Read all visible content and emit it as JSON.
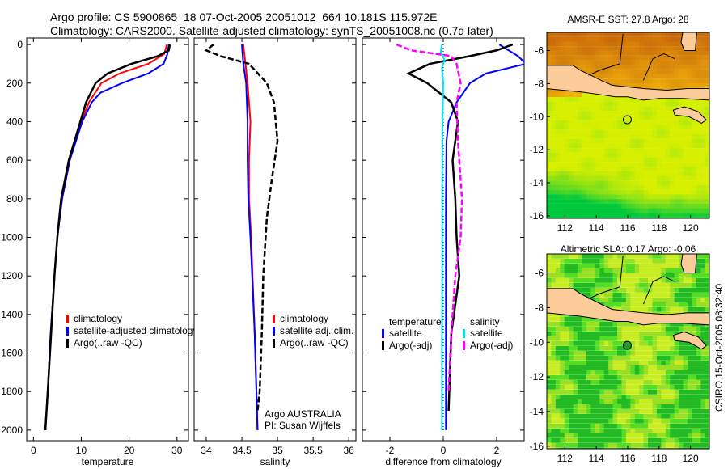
{
  "header": {
    "line1": "Argo profile: CS 5900865_18 07-Oct-2005 20051012_664 10.181S 115.972E",
    "line2": "Climatology: CARS2000. Satellite-adjusted climatology: synTS_20051008.nc (0.7d later)"
  },
  "footer_stamp": "CSIRO 15-Oct-2005 08:32:40",
  "colors": {
    "climatology": "#ff0000",
    "satellite": "#0000ff",
    "argo": "#000000",
    "sal_satellite": "#00e5ee",
    "sal_argo": "#ff00ff"
  },
  "chart_data": [
    {
      "type": "line",
      "xlabel": "temperature",
      "ylabel": "",
      "xlim": [
        -1.4,
        32.4
      ],
      "ylim": [
        2055,
        -34
      ],
      "xticks": [
        "0",
        "10",
        "20",
        "30"
      ],
      "xtick_values": [
        0,
        10,
        20,
        30
      ],
      "yticks": [
        "0",
        "200",
        "400",
        "600",
        "800",
        "1000",
        "1200",
        "1400",
        "1600",
        "1800",
        "2000"
      ],
      "legend": [
        "climatology",
        "satellite-adjusted climatology",
        "Argo(..raw -QC)"
      ],
      "series": [
        {
          "name": "climatology",
          "color": "#ff0000",
          "depth": [
            0,
            50,
            100,
            150,
            200,
            300,
            400,
            600,
            800,
            1000,
            1200,
            1500,
            1800,
            2000
          ],
          "values": [
            27.9,
            27.3,
            24,
            18,
            14.2,
            11.6,
            10,
            7.6,
            6,
            5,
            4.4,
            3.6,
            3,
            2.5
          ]
        },
        {
          "name": "satellite-adjusted climatology",
          "color": "#0000ff",
          "depth": [
            0,
            50,
            100,
            150,
            200,
            250,
            300,
            400,
            600,
            800,
            1000,
            1200,
            1500,
            1800,
            2000
          ],
          "values": [
            28.3,
            28,
            27.2,
            24,
            18.5,
            14,
            12.2,
            10.2,
            7.6,
            6,
            5,
            4.4,
            3.6,
            3,
            2.5
          ]
        },
        {
          "name": "Argo(..raw -QC)",
          "color": "#000000",
          "depth": [
            0,
            30,
            60,
            100,
            150,
            200,
            300,
            400,
            600,
            800,
            1000,
            1200,
            1500,
            1800,
            2000
          ],
          "values": [
            28.5,
            28.3,
            26,
            20.5,
            15.5,
            13,
            11,
            9.8,
            7.4,
            5.8,
            5,
            4.4,
            3.7,
            3,
            2.5
          ]
        }
      ]
    },
    {
      "type": "line",
      "xlabel": "salinity",
      "xlim": [
        33.83,
        36.1
      ],
      "ylim": [
        2055,
        -34
      ],
      "xticks": [
        "34",
        "34.5",
        "35",
        "35.5",
        "36"
      ],
      "xtick_values": [
        34,
        34.5,
        35,
        35.5,
        36
      ],
      "legend": [
        "climatology",
        "satellite adj. clim.",
        "Argo(..raw -QC)"
      ],
      "annotation": [
        "Argo AUSTRALIA",
        "PI: Susan Wijffels"
      ],
      "series": [
        {
          "name": "climatology",
          "color": "#ff0000",
          "depth": [
            0,
            100,
            200,
            300,
            400,
            600,
            800,
            1000,
            1500,
            2000
          ],
          "values": [
            34.52,
            34.55,
            34.58,
            34.6,
            34.62,
            34.6,
            34.6,
            34.63,
            34.68,
            34.72
          ]
        },
        {
          "name": "satellite adj. clim.",
          "color": "#0000ff",
          "depth": [
            0,
            100,
            200,
            300,
            400,
            600,
            800,
            1000,
            1500,
            2000
          ],
          "values": [
            34.5,
            34.52,
            34.56,
            34.57,
            34.58,
            34.58,
            34.59,
            34.62,
            34.68,
            34.72
          ]
        },
        {
          "name": "Argo(..raw -QC)",
          "color": "#000000",
          "depth": [
            0,
            30,
            60,
            100,
            200,
            300,
            500,
            700,
            900,
            1200,
            1500,
            1800,
            1900
          ],
          "values": [
            34.1,
            34.0,
            34.2,
            34.6,
            34.85,
            34.95,
            35.0,
            34.92,
            34.85,
            34.8,
            34.78,
            34.75,
            34.72
          ]
        }
      ]
    },
    {
      "type": "line",
      "xlabel": "difference from climatology",
      "xlim": [
        -3.03,
        3.03
      ],
      "ylim": [
        2055,
        -34
      ],
      "xticks": [
        "-2",
        "0",
        "2"
      ],
      "xtick_values": [
        -2,
        0,
        2
      ],
      "legend_headers": [
        "temperature",
        "salinity"
      ],
      "legend": [
        "satellite",
        "Argo(-adj)",
        "satellite",
        "Argo(-adj)"
      ],
      "series": [
        {
          "name": "temperature satellite",
          "color": "#0000ff",
          "depth": [
            0,
            60,
            100,
            150,
            200,
            300,
            400,
            500,
            800,
            1200,
            1600,
            2000
          ],
          "values": [
            2.1,
            2.8,
            3.1,
            1.6,
            1.0,
            0.5,
            0.2,
            0.12,
            0.1,
            0.1,
            0.1,
            0.1
          ]
        },
        {
          "name": "temperature Argo(-adj)",
          "color": "#000000",
          "depth": [
            0,
            30,
            60,
            100,
            150,
            200,
            300,
            400,
            600,
            800,
            1000,
            1200,
            1500,
            1900
          ],
          "values": [
            2.6,
            2.0,
            1.0,
            -0.5,
            -1.3,
            -0.6,
            0.3,
            0.55,
            0.35,
            0.45,
            0.5,
            0.6,
            0.3,
            0.2
          ]
        },
        {
          "name": "salinity satellite",
          "color": "#00e5ee",
          "depth": [
            0,
            40,
            80,
            120,
            200,
            400,
            800,
            1200,
            1600,
            2000
          ],
          "values": [
            -0.05,
            -0.1,
            0.05,
            -0.05,
            0,
            -0.03,
            -0.04,
            -0.04,
            -0.05,
            -0.05
          ]
        },
        {
          "name": "salinity Argo(-adj)",
          "color": "#ff00ff",
          "depth": [
            0,
            30,
            60,
            100,
            200,
            300,
            500,
            800,
            1000,
            1200,
            1500,
            1800
          ],
          "values": [
            -1.75,
            -1.2,
            0.3,
            0.5,
            0.65,
            0.5,
            0.55,
            0.7,
            0.65,
            0.45,
            0.3,
            0.2
          ]
        }
      ]
    },
    {
      "type": "heatmap",
      "title": "AMSR-E SST: 27.8 Argo: 28",
      "xticks": [
        "112",
        "114",
        "116",
        "118",
        "120"
      ],
      "yticks": [
        "-6",
        "-8",
        "-10",
        "-12",
        "-14",
        "-16"
      ],
      "xlim": [
        110.85,
        121.2
      ],
      "ylim": [
        -16.15,
        -4.9
      ],
      "float_position": [
        115.972,
        -10.181
      ]
    },
    {
      "type": "heatmap",
      "title": "Altimetric SLA: 0.17 Argo: -0.06",
      "xticks": [
        "112",
        "114",
        "116",
        "118",
        "120"
      ],
      "yticks": [
        "-6",
        "-8",
        "-10",
        "-12",
        "-14",
        "-16"
      ],
      "xlim": [
        110.85,
        121.2
      ],
      "ylim": [
        -16.15,
        -4.9
      ],
      "float_position": [
        115.972,
        -10.181
      ]
    }
  ]
}
